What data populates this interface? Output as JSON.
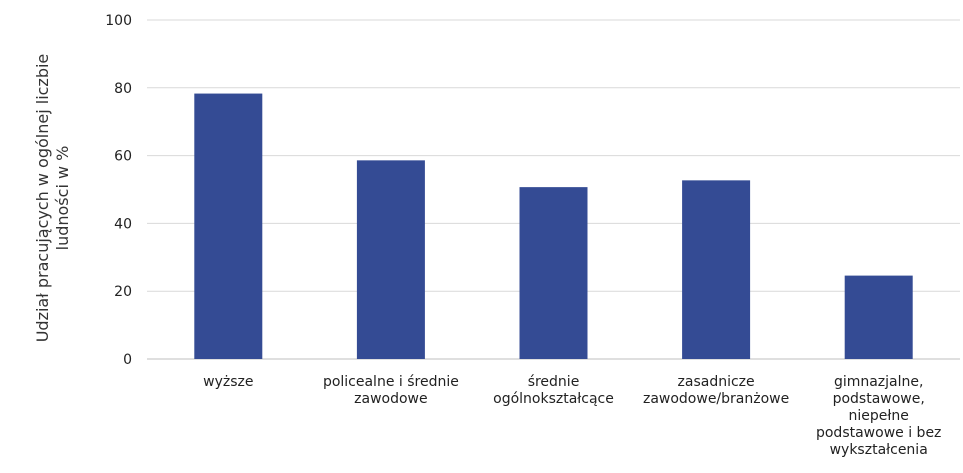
{
  "chart_data": {
    "type": "bar",
    "title": "",
    "xlabel": "",
    "ylabel_lines": [
      "Udział pracujących w ogólnej liczbie",
      "ludności w %"
    ],
    "categories": [
      [
        "wyższe"
      ],
      [
        "policealne i średnie",
        "zawodowe"
      ],
      [
        "średnie",
        "ogólnokształcące"
      ],
      [
        "zasadnicze",
        "zawodowe/branżowe"
      ],
      [
        "gimnazjalne,",
        "podstawowe,",
        "niepełne",
        "podstawowe i bez",
        "wykształcenia"
      ]
    ],
    "values": [
      78.3,
      58.6,
      50.7,
      52.7,
      24.6
    ],
    "ylim": [
      0,
      100
    ],
    "yticks": [
      0,
      20,
      40,
      60,
      80,
      100
    ],
    "grid": true,
    "bar_color": "#344b94",
    "grid_color": "#d9d9d9"
  }
}
